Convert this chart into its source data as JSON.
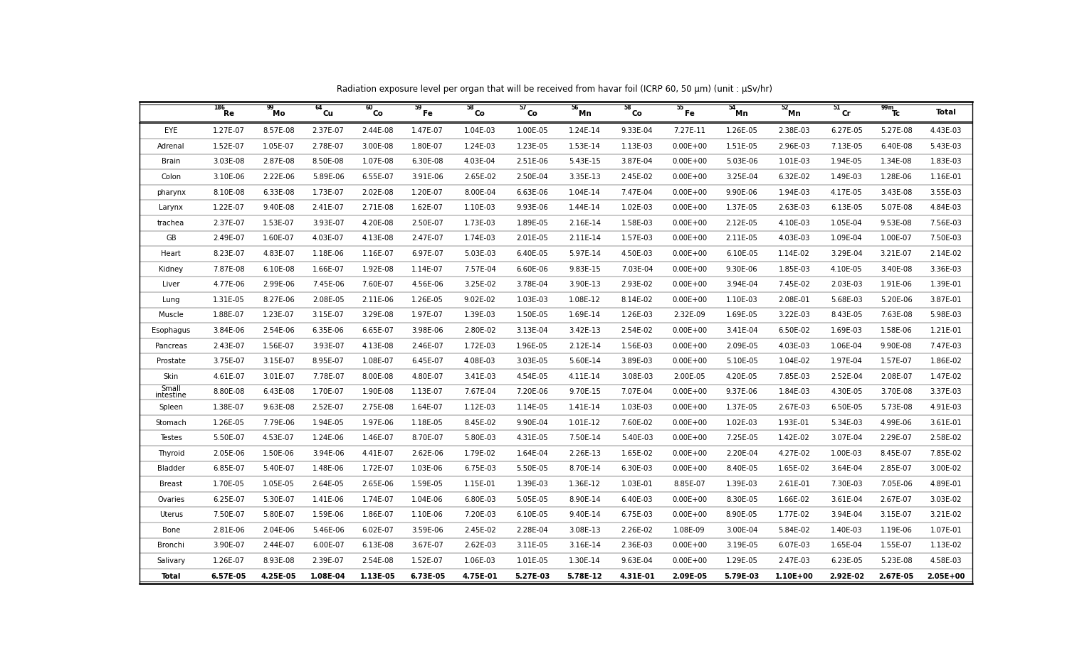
{
  "title": "Radiation exposure level per organ that will be received from havar foil (ICRP 60, 50 μm) (unit : μSv/hr)",
  "superscripts": [
    "",
    "186",
    "99",
    "64",
    "60",
    "59",
    "58",
    "57",
    "56",
    "58",
    "55",
    "54",
    "52",
    "51",
    "99m",
    ""
  ],
  "elements": [
    "",
    "Re",
    "Mo",
    "Cu",
    "Co",
    "Fe",
    "Co",
    "Co",
    "Mn",
    "Co",
    "Fe",
    "Mn",
    "Mn",
    "Cr",
    "Tc",
    "Total"
  ],
  "rows": [
    [
      "EYE",
      "1.27E-07",
      "8.57E-08",
      "2.37E-07",
      "2.44E-08",
      "1.47E-07",
      "1.04E-03",
      "1.00E-05",
      "1.24E-14",
      "9.33E-04",
      "7.27E-11",
      "1.26E-05",
      "2.38E-03",
      "6.27E-05",
      "5.27E-08",
      "4.43E-03"
    ],
    [
      "Adrenal",
      "1.52E-07",
      "1.05E-07",
      "2.78E-07",
      "3.00E-08",
      "1.80E-07",
      "1.24E-03",
      "1.23E-05",
      "1.53E-14",
      "1.13E-03",
      "0.00E+00",
      "1.51E-05",
      "2.96E-03",
      "7.13E-05",
      "6.40E-08",
      "5.43E-03"
    ],
    [
      "Brain",
      "3.03E-08",
      "2.87E-08",
      "8.50E-08",
      "1.07E-08",
      "6.30E-08",
      "4.03E-04",
      "2.51E-06",
      "5.43E-15",
      "3.87E-04",
      "0.00E+00",
      "5.03E-06",
      "1.01E-03",
      "1.94E-05",
      "1.34E-08",
      "1.83E-03"
    ],
    [
      "Colon",
      "3.10E-06",
      "2.22E-06",
      "5.89E-06",
      "6.55E-07",
      "3.91E-06",
      "2.65E-02",
      "2.50E-04",
      "3.35E-13",
      "2.45E-02",
      "0.00E+00",
      "3.25E-04",
      "6.32E-02",
      "1.49E-03",
      "1.28E-06",
      "1.16E-01"
    ],
    [
      "pharynx",
      "8.10E-08",
      "6.33E-08",
      "1.73E-07",
      "2.02E-08",
      "1.20E-07",
      "8.00E-04",
      "6.63E-06",
      "1.04E-14",
      "7.47E-04",
      "0.00E+00",
      "9.90E-06",
      "1.94E-03",
      "4.17E-05",
      "3.43E-08",
      "3.55E-03"
    ],
    [
      "Larynx",
      "1.22E-07",
      "9.40E-08",
      "2.41E-07",
      "2.71E-08",
      "1.62E-07",
      "1.10E-03",
      "9.93E-06",
      "1.44E-14",
      "1.02E-03",
      "0.00E+00",
      "1.37E-05",
      "2.63E-03",
      "6.13E-05",
      "5.07E-08",
      "4.84E-03"
    ],
    [
      "trachea",
      "2.37E-07",
      "1.53E-07",
      "3.93E-07",
      "4.20E-08",
      "2.50E-07",
      "1.73E-03",
      "1.89E-05",
      "2.16E-14",
      "1.58E-03",
      "0.00E+00",
      "2.12E-05",
      "4.10E-03",
      "1.05E-04",
      "9.53E-08",
      "7.56E-03"
    ],
    [
      "GB",
      "2.49E-07",
      "1.60E-07",
      "4.03E-07",
      "4.13E-08",
      "2.47E-07",
      "1.74E-03",
      "2.01E-05",
      "2.11E-14",
      "1.57E-03",
      "0.00E+00",
      "2.11E-05",
      "4.03E-03",
      "1.09E-04",
      "1.00E-07",
      "7.50E-03"
    ],
    [
      "Heart",
      "8.23E-07",
      "4.83E-07",
      "1.18E-06",
      "1.16E-07",
      "6.97E-07",
      "5.03E-03",
      "6.40E-05",
      "5.97E-14",
      "4.50E-03",
      "0.00E+00",
      "6.10E-05",
      "1.14E-02",
      "3.29E-04",
      "3.21E-07",
      "2.14E-02"
    ],
    [
      "Kidney",
      "7.87E-08",
      "6.10E-08",
      "1.66E-07",
      "1.92E-08",
      "1.14E-07",
      "7.57E-04",
      "6.60E-06",
      "9.83E-15",
      "7.03E-04",
      "0.00E+00",
      "9.30E-06",
      "1.85E-03",
      "4.10E-05",
      "3.40E-08",
      "3.36E-03"
    ],
    [
      "Liver",
      "4.77E-06",
      "2.99E-06",
      "7.45E-06",
      "7.60E-07",
      "4.56E-06",
      "3.25E-02",
      "3.78E-04",
      "3.90E-13",
      "2.93E-02",
      "0.00E+00",
      "3.94E-04",
      "7.45E-02",
      "2.03E-03",
      "1.91E-06",
      "1.39E-01"
    ],
    [
      "Lung",
      "1.31E-05",
      "8.27E-06",
      "2.08E-05",
      "2.11E-06",
      "1.26E-05",
      "9.02E-02",
      "1.03E-03",
      "1.08E-12",
      "8.14E-02",
      "0.00E+00",
      "1.10E-03",
      "2.08E-01",
      "5.68E-03",
      "5.20E-06",
      "3.87E-01"
    ],
    [
      "Muscle",
      "1.88E-07",
      "1.23E-07",
      "3.15E-07",
      "3.29E-08",
      "1.97E-07",
      "1.39E-03",
      "1.50E-05",
      "1.69E-14",
      "1.26E-03",
      "2.32E-09",
      "1.69E-05",
      "3.22E-03",
      "8.43E-05",
      "7.63E-08",
      "5.98E-03"
    ],
    [
      "Esophagus",
      "3.84E-06",
      "2.54E-06",
      "6.35E-06",
      "6.65E-07",
      "3.98E-06",
      "2.80E-02",
      "3.13E-04",
      "3.42E-13",
      "2.54E-02",
      "0.00E+00",
      "3.41E-04",
      "6.50E-02",
      "1.69E-03",
      "1.58E-06",
      "1.21E-01"
    ],
    [
      "Pancreas",
      "2.43E-07",
      "1.56E-07",
      "3.93E-07",
      "4.13E-08",
      "2.46E-07",
      "1.72E-03",
      "1.96E-05",
      "2.12E-14",
      "1.56E-03",
      "0.00E+00",
      "2.09E-05",
      "4.03E-03",
      "1.06E-04",
      "9.90E-08",
      "7.47E-03"
    ],
    [
      "Prostate",
      "3.75E-07",
      "3.15E-07",
      "8.95E-07",
      "1.08E-07",
      "6.45E-07",
      "4.08E-03",
      "3.03E-05",
      "5.60E-14",
      "3.89E-03",
      "0.00E+00",
      "5.10E-05",
      "1.04E-02",
      "1.97E-04",
      "1.57E-07",
      "1.86E-02"
    ],
    [
      "Skin",
      "4.61E-07",
      "3.01E-07",
      "7.78E-07",
      "8.00E-08",
      "4.80E-07",
      "3.41E-03",
      "4.54E-05",
      "4.11E-14",
      "3.08E-03",
      "2.00E-05",
      "4.20E-05",
      "7.85E-03",
      "2.52E-04",
      "2.08E-07",
      "1.47E-02"
    ],
    [
      "Small\nintestine",
      "8.80E-08",
      "6.43E-08",
      "1.70E-07",
      "1.90E-08",
      "1.13E-07",
      "7.67E-04",
      "7.20E-06",
      "9.70E-15",
      "7.07E-04",
      "0.00E+00",
      "9.37E-06",
      "1.84E-03",
      "4.30E-05",
      "3.70E-08",
      "3.37E-03"
    ],
    [
      "Spleen",
      "1.38E-07",
      "9.63E-08",
      "2.52E-07",
      "2.75E-08",
      "1.64E-07",
      "1.12E-03",
      "1.14E-05",
      "1.41E-14",
      "1.03E-03",
      "0.00E+00",
      "1.37E-05",
      "2.67E-03",
      "6.50E-05",
      "5.73E-08",
      "4.91E-03"
    ],
    [
      "Stomach",
      "1.26E-05",
      "7.79E-06",
      "1.94E-05",
      "1.97E-06",
      "1.18E-05",
      "8.45E-02",
      "9.90E-04",
      "1.01E-12",
      "7.60E-02",
      "0.00E+00",
      "1.02E-03",
      "1.93E-01",
      "5.34E-03",
      "4.99E-06",
      "3.61E-01"
    ],
    [
      "Testes",
      "5.50E-07",
      "4.53E-07",
      "1.24E-06",
      "1.46E-07",
      "8.70E-07",
      "5.80E-03",
      "4.31E-05",
      "7.50E-14",
      "5.40E-03",
      "0.00E+00",
      "7.25E-05",
      "1.42E-02",
      "3.07E-04",
      "2.29E-07",
      "2.58E-02"
    ],
    [
      "Thyroid",
      "2.05E-06",
      "1.50E-06",
      "3.94E-06",
      "4.41E-07",
      "2.62E-06",
      "1.79E-02",
      "1.64E-04",
      "2.26E-13",
      "1.65E-02",
      "0.00E+00",
      "2.20E-04",
      "4.27E-02",
      "1.00E-03",
      "8.45E-07",
      "7.85E-02"
    ],
    [
      "Bladder",
      "6.85E-07",
      "5.40E-07",
      "1.48E-06",
      "1.72E-07",
      "1.03E-06",
      "6.75E-03",
      "5.50E-05",
      "8.70E-14",
      "6.30E-03",
      "0.00E+00",
      "8.40E-05",
      "1.65E-02",
      "3.64E-04",
      "2.85E-07",
      "3.00E-02"
    ],
    [
      "Breast",
      "1.70E-05",
      "1.05E-05",
      "2.64E-05",
      "2.65E-06",
      "1.59E-05",
      "1.15E-01",
      "1.39E-03",
      "1.36E-12",
      "1.03E-01",
      "8.85E-07",
      "1.39E-03",
      "2.61E-01",
      "7.30E-03",
      "7.05E-06",
      "4.89E-01"
    ],
    [
      "Ovaries",
      "6.25E-07",
      "5.30E-07",
      "1.41E-06",
      "1.74E-07",
      "1.04E-06",
      "6.80E-03",
      "5.05E-05",
      "8.90E-14",
      "6.40E-03",
      "0.00E+00",
      "8.30E-05",
      "1.66E-02",
      "3.61E-04",
      "2.67E-07",
      "3.03E-02"
    ],
    [
      "Uterus",
      "7.50E-07",
      "5.80E-07",
      "1.59E-06",
      "1.86E-07",
      "1.10E-06",
      "7.20E-03",
      "6.10E-05",
      "9.40E-14",
      "6.75E-03",
      "0.00E+00",
      "8.90E-05",
      "1.77E-02",
      "3.94E-04",
      "3.15E-07",
      "3.21E-02"
    ],
    [
      "Bone",
      "2.81E-06",
      "2.04E-06",
      "5.46E-06",
      "6.02E-07",
      "3.59E-06",
      "2.45E-02",
      "2.28E-04",
      "3.08E-13",
      "2.26E-02",
      "1.08E-09",
      "3.00E-04",
      "5.84E-02",
      "1.40E-03",
      "1.19E-06",
      "1.07E-01"
    ],
    [
      "Bronchi",
      "3.90E-07",
      "2.44E-07",
      "6.00E-07",
      "6.13E-08",
      "3.67E-07",
      "2.62E-03",
      "3.11E-05",
      "3.16E-14",
      "2.36E-03",
      "0.00E+00",
      "3.19E-05",
      "6.07E-03",
      "1.65E-04",
      "1.55E-07",
      "1.13E-02"
    ],
    [
      "Salivary",
      "1.26E-07",
      "8.93E-08",
      "2.39E-07",
      "2.54E-08",
      "1.52E-07",
      "1.06E-03",
      "1.01E-05",
      "1.30E-14",
      "9.63E-04",
      "0.00E+00",
      "1.29E-05",
      "2.47E-03",
      "6.23E-05",
      "5.23E-08",
      "4.58E-03"
    ],
    [
      "Total",
      "6.57E-05",
      "4.25E-05",
      "1.08E-04",
      "1.13E-05",
      "6.73E-05",
      "4.75E-01",
      "5.27E-03",
      "5.78E-12",
      "4.31E-01",
      "2.09E-05",
      "5.79E-03",
      "1.10E+00",
      "2.92E-02",
      "2.67E-05",
      "2.05E+00"
    ]
  ],
  "text_color": "#000000",
  "font_size": 7.2,
  "header_font_size": 7.5,
  "title_font_size": 8.5
}
